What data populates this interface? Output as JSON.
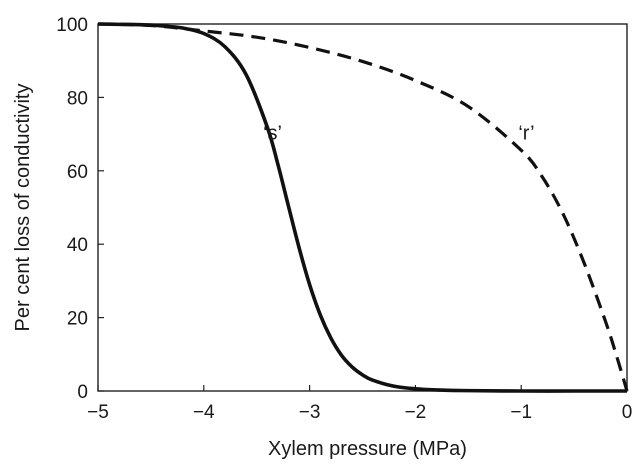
{
  "chart_data": {
    "type": "line",
    "title": "",
    "xlabel": "Xylem pressure (MPa)",
    "ylabel": "Per cent loss of conductivity",
    "xlim": [
      -5,
      0
    ],
    "ylim": [
      0,
      100
    ],
    "xticks": [
      "−5",
      "−4",
      "−3",
      "−2",
      "−1",
      "0"
    ],
    "xtick_values": [
      -5,
      -4,
      -3,
      -2,
      -1,
      0
    ],
    "yticks": [
      "0",
      "20",
      "40",
      "60",
      "80",
      "100"
    ],
    "ytick_values": [
      0,
      20,
      40,
      60,
      80,
      100
    ],
    "grid": false,
    "legend": "none",
    "series": [
      {
        "label": "‘s’",
        "style": "solid",
        "color": "#111111",
        "x": [
          -5,
          -4.8,
          -4.6,
          -4.4,
          -4.2,
          -4.0,
          -3.8,
          -3.6,
          -3.4,
          -3.3,
          -3.2,
          -3.1,
          -3.0,
          -2.9,
          -2.8,
          -2.7,
          -2.6,
          -2.5,
          -2.4,
          -2.2,
          -2.0,
          -1.8,
          -1.5,
          -1.0,
          -0.5,
          0
        ],
        "y": [
          100,
          99.9,
          99.8,
          99.5,
          98.9,
          97.4,
          93.8,
          86.2,
          71.9,
          61.8,
          50.4,
          39.1,
          29.0,
          20.8,
          14.5,
          9.8,
          6.6,
          4.4,
          2.9,
          1.3,
          0.6,
          0.3,
          0.1,
          0,
          0,
          0
        ]
      },
      {
        "label": "‘r’",
        "style": "dashed",
        "color": "#111111",
        "x": [
          -5,
          -4.5,
          -4.0,
          -3.5,
          -3.0,
          -2.5,
          -2.0,
          -1.5,
          -1.0,
          -0.8,
          -0.6,
          -0.4,
          -0.2,
          -0.1,
          0
        ],
        "y": [
          100,
          99.6,
          98.1,
          96.4,
          93.6,
          89.8,
          84.6,
          77.5,
          65.6,
          58.3,
          48.0,
          34.5,
          18.7,
          9.7,
          0
        ]
      }
    ],
    "annotations": [
      {
        "text": "‘s’",
        "x": -3.35,
        "y": 68.5
      },
      {
        "text": "‘r’",
        "x": -0.95,
        "y": 68.5
      }
    ]
  }
}
